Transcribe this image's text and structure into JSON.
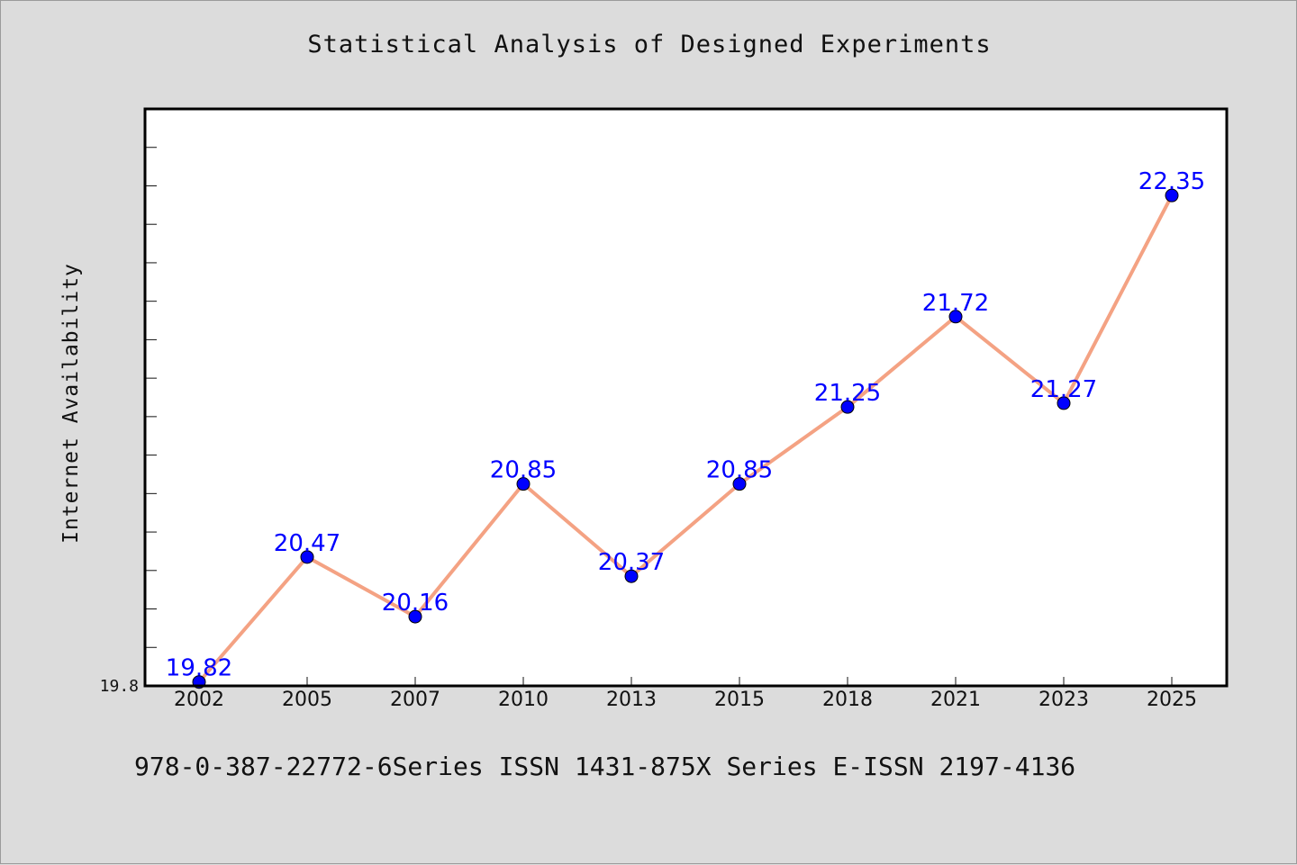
{
  "title": "Statistical Analysis of Designed Experiments",
  "footer": "978-0-387-22772-6Series ISSN 1431-875X Series E-ISSN 2197-4136",
  "chart_data": {
    "type": "line",
    "title": "Statistical Analysis of Designed Experiments",
    "xlabel": "",
    "ylabel": "Internet Availability",
    "categories": [
      "2002",
      "2005",
      "2007",
      "2010",
      "2013",
      "2015",
      "2018",
      "2021",
      "2023",
      "2025"
    ],
    "series": [
      {
        "values": [
          19.82,
          20.47,
          20.16,
          20.85,
          20.37,
          20.85,
          21.25,
          21.72,
          21.27,
          22.35
        ]
      }
    ],
    "y_tick_labels": [
      "19.8"
    ],
    "ylim": [
      19.8,
      22.8
    ],
    "y_minor_step": 0.2,
    "grid": false,
    "legend": "none",
    "colors": {
      "line": "#f4a283",
      "marker": "#0000ff",
      "label": "#0000ff",
      "plot_background": "#ffffff",
      "page_background": "#dcdcdc"
    }
  }
}
